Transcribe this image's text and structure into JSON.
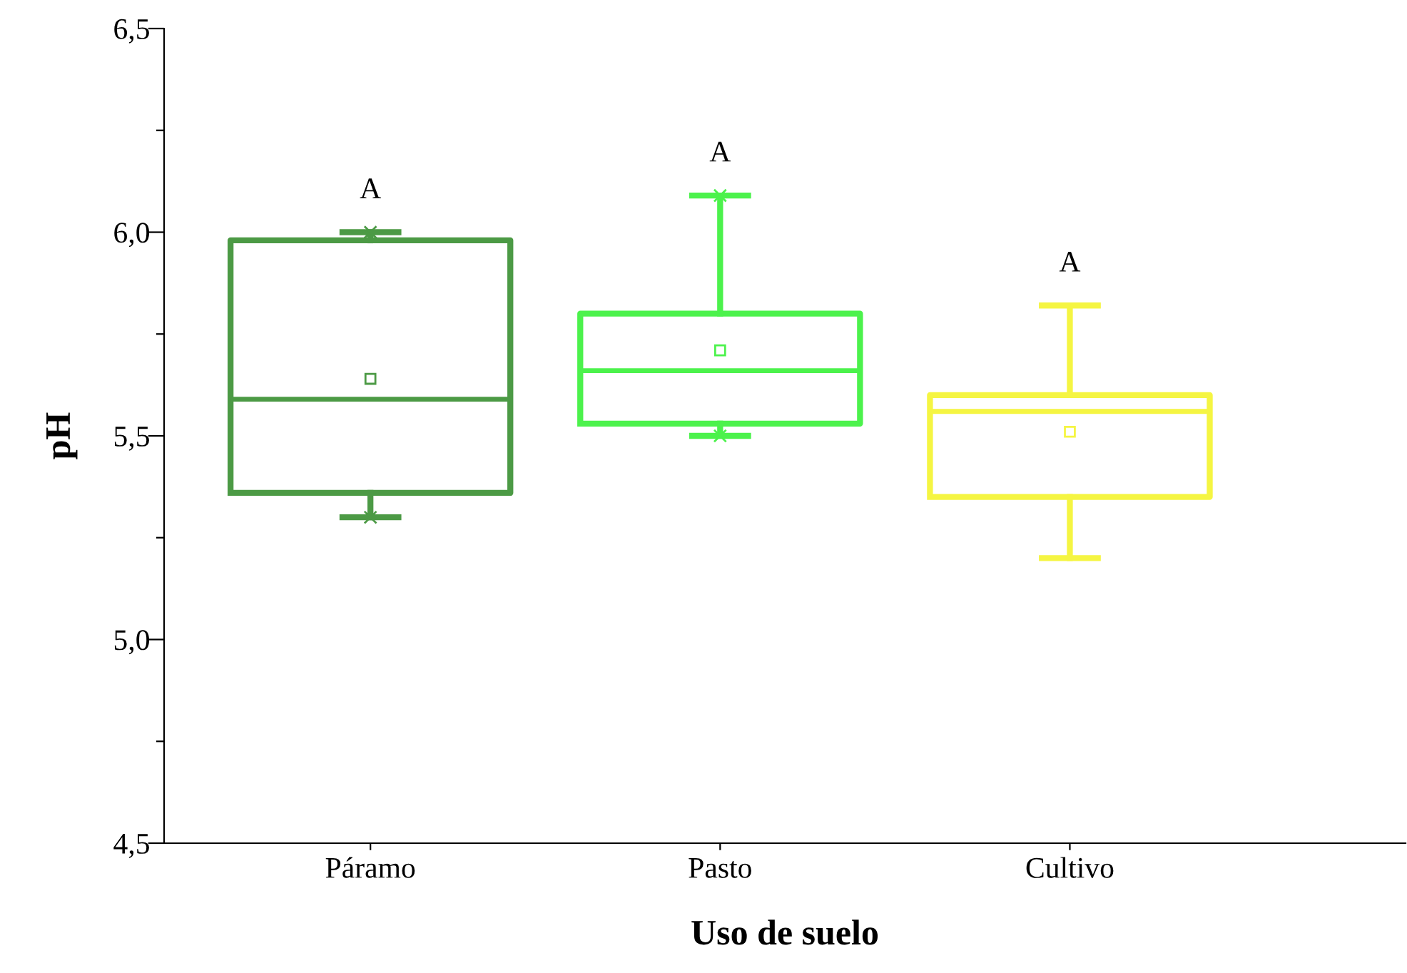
{
  "chart_data": {
    "type": "box",
    "xlabel": "Uso de suelo",
    "ylabel": "pH",
    "categories": [
      "Páramo",
      "Pasto",
      "Cultivo"
    ],
    "colors": [
      "#4c9a45",
      "#4cf24c",
      "#f5f542"
    ],
    "boxes": [
      {
        "low": 5.3,
        "q1": 5.36,
        "median": 5.59,
        "q3": 5.98,
        "high": 6.0,
        "mean": 5.64,
        "outliers": [
          6.0,
          5.3
        ]
      },
      {
        "low": 5.5,
        "q1": 5.53,
        "median": 5.66,
        "q3": 5.8,
        "high": 6.09,
        "mean": 5.71,
        "outliers": [
          6.09,
          5.5
        ]
      },
      {
        "low": 5.2,
        "q1": 5.35,
        "median": 5.56,
        "q3": 5.6,
        "high": 5.82,
        "mean": 5.51
      }
    ],
    "ylim": [
      4.5,
      6.5
    ],
    "yticks": [
      {
        "value": 4.5,
        "label": "4,5"
      },
      {
        "value": 4.75,
        "label": null
      },
      {
        "value": 5.0,
        "label": "5,0"
      },
      {
        "value": 5.25,
        "label": null
      },
      {
        "value": 5.5,
        "label": "5,5"
      },
      {
        "value": 5.75,
        "label": null
      },
      {
        "value": 6.0,
        "label": "6,0"
      },
      {
        "value": 6.25,
        "label": null
      },
      {
        "value": 6.5,
        "label": "6,5"
      }
    ],
    "annotations": [
      "A",
      "A",
      "A"
    ],
    "grid": false,
    "legend": false
  }
}
